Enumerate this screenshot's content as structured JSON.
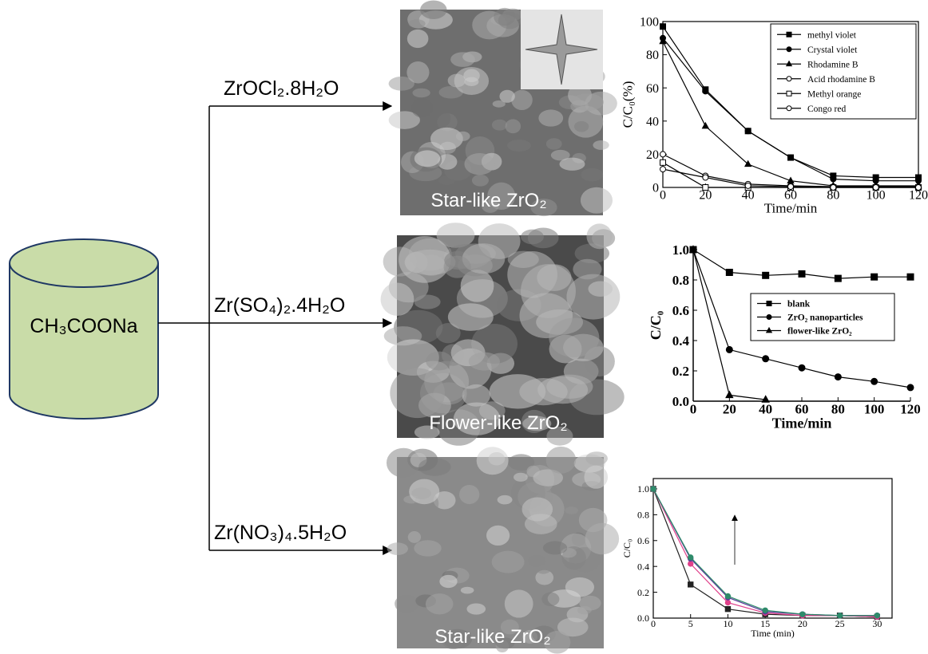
{
  "flow": {
    "precursor": "CH₃COONa",
    "routes": [
      {
        "reagent": "ZrOCl₂.8H₂O",
        "product": "Star-like ZrO₂"
      },
      {
        "reagent": "Zr(SO₄)₂.4H₂O",
        "product": "Flower-like ZrO₂"
      },
      {
        "reagent": "Zr(NO₃)₄.5H₂O",
        "product": "Star-like ZrO₂"
      }
    ]
  },
  "chart_data": [
    {
      "type": "line",
      "xlabel": "Time/min",
      "ylabel": "C/C₀(%)",
      "x": [
        0,
        20,
        40,
        60,
        80,
        100,
        120
      ],
      "xlim": [
        0,
        120
      ],
      "xticks": [
        0,
        20,
        40,
        60,
        80,
        100,
        120
      ],
      "ylim": [
        0,
        100
      ],
      "yticks": [
        0,
        20,
        40,
        60,
        80,
        100
      ],
      "legend": "upper right",
      "series": [
        {
          "name": "methyl violet",
          "color": "#000000",
          "marker": "square",
          "values": [
            97,
            59,
            34,
            18,
            7,
            6,
            6
          ]
        },
        {
          "name": "Crystal violet",
          "color": "#000000",
          "marker": "circle",
          "values": [
            90,
            58,
            34,
            18,
            5,
            4,
            4
          ]
        },
        {
          "name": "Rhodamine B",
          "color": "#000000",
          "marker": "triangle",
          "values": [
            88,
            37,
            14,
            4,
            1,
            1,
            1
          ]
        },
        {
          "name": "Acid rhodamine B",
          "color": "#000000",
          "marker": "open-circle",
          "values": [
            20,
            7,
            2,
            1,
            0.5,
            0.5,
            0.5
          ]
        },
        {
          "name": "Methyl orange",
          "color": "#000000",
          "marker": "open-square",
          "values": [
            15,
            0,
            0,
            0,
            0,
            0,
            0
          ]
        },
        {
          "name": "Congo red",
          "color": "#000000",
          "marker": "open-circle",
          "values": [
            11,
            6,
            1,
            0.5,
            0,
            0,
            0
          ]
        }
      ]
    },
    {
      "type": "line",
      "xlabel": "Time/min",
      "ylabel": "C/C₀",
      "x": [
        0,
        20,
        40,
        60,
        80,
        100,
        120
      ],
      "xlim": [
        0,
        120
      ],
      "xticks": [
        0,
        20,
        40,
        60,
        80,
        100,
        120
      ],
      "ylim": [
        0,
        1
      ],
      "yticks": [
        {
          "value": 0,
          "label": "0.0"
        },
        0.2,
        0.4,
        0.6,
        0.8,
        {
          "value": 1,
          "label": "1.0"
        }
      ],
      "legend": "center right",
      "series": [
        {
          "name": "blank",
          "color": "#000000",
          "marker": "square",
          "values": [
            1.0,
            0.85,
            0.83,
            0.84,
            0.81,
            0.82,
            0.82
          ]
        },
        {
          "name": "ZrO₂ nanoparticles",
          "color": "#000000",
          "marker": "circle",
          "values": [
            1.0,
            0.34,
            0.28,
            0.22,
            0.16,
            0.13,
            0.09
          ]
        },
        {
          "name": "flower-like ZrO₂",
          "color": "#000000",
          "marker": "triangle",
          "values": [
            1.0,
            0.04,
            0.01,
            null,
            null,
            null,
            null
          ]
        }
      ]
    },
    {
      "type": "line",
      "xlabel": "Time (min)",
      "ylabel": "C/C₀",
      "x": [
        0,
        5,
        10,
        15,
        20,
        25,
        30
      ],
      "xlim": [
        0,
        32
      ],
      "xticks": [
        0,
        5,
        10,
        15,
        20,
        25,
        30
      ],
      "ylim": [
        0,
        1.08
      ],
      "yticks": [
        {
          "value": 0,
          "label": "0.0"
        },
        0.2,
        0.4,
        0.6,
        0.8,
        {
          "value": 1,
          "label": "1.0"
        }
      ],
      "series": [
        {
          "color": "#222222",
          "marker": "square",
          "values": [
            1.0,
            0.26,
            0.07,
            0.03,
            0.02,
            0.02,
            0.01
          ]
        },
        {
          "color": "#e0408a",
          "marker": "circle",
          "values": [
            1.0,
            0.42,
            0.12,
            0.04,
            0.02,
            0.02,
            0.01
          ]
        },
        {
          "color": "#5a3a9a",
          "marker": "circle",
          "values": [
            1.0,
            0.46,
            0.16,
            0.05,
            0.03,
            0.02,
            0.02
          ]
        },
        {
          "color": "#2e8b6a",
          "marker": "circle",
          "values": [
            1.0,
            0.47,
            0.17,
            0.06,
            0.03,
            0.02,
            0.02
          ]
        }
      ]
    }
  ]
}
